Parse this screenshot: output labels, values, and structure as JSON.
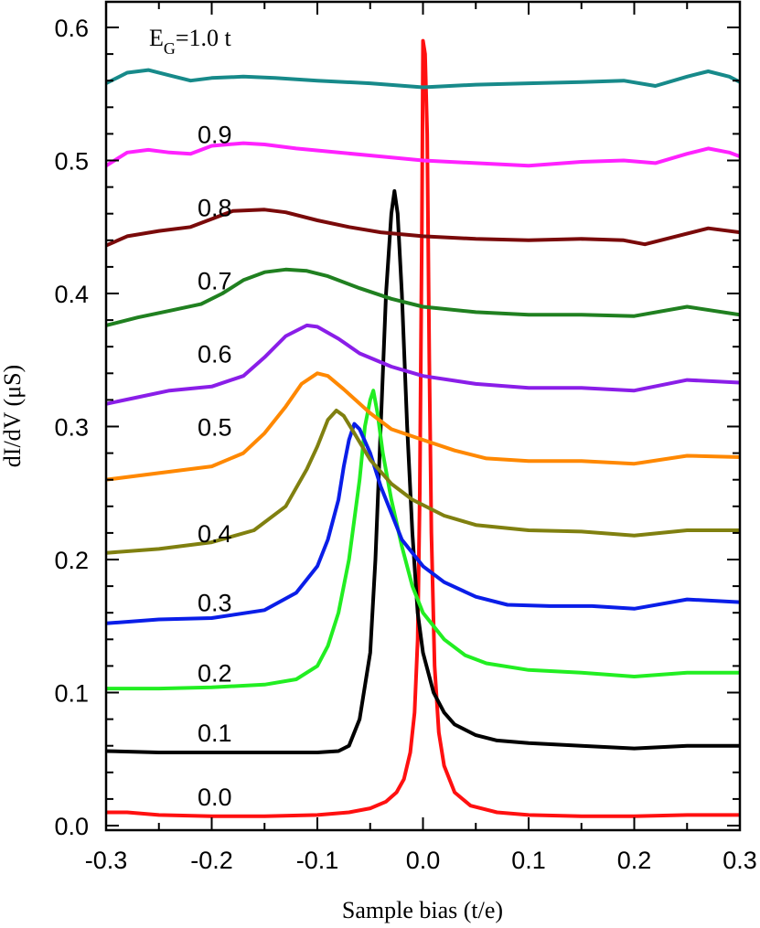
{
  "chart_data": {
    "type": "line",
    "xlabel": "Sample bias (t/e)",
    "ylabel": "dI/dV (μS)",
    "xlim": [
      -0.3,
      0.3
    ],
    "ylim": [
      0.0,
      0.62
    ],
    "x_ticks": [
      "-0.3",
      "-0.2",
      "-0.1",
      "0.0",
      "0.1",
      "0.2",
      "0.3"
    ],
    "y_ticks": [
      "0.0",
      "0.1",
      "0.2",
      "0.3",
      "0.4",
      "0.5",
      "0.6"
    ],
    "grid": false,
    "annotation": {
      "prefix": "E",
      "subscript": "G",
      "suffix": "=1.0 t"
    },
    "series": [
      {
        "name": "0.0",
        "color": "#ff1010",
        "points": [
          [
            -0.3,
            0.01
          ],
          [
            -0.28,
            0.01
          ],
          [
            -0.25,
            0.008
          ],
          [
            -0.2,
            0.007
          ],
          [
            -0.15,
            0.007
          ],
          [
            -0.1,
            0.008
          ],
          [
            -0.07,
            0.01
          ],
          [
            -0.05,
            0.013
          ],
          [
            -0.035,
            0.018
          ],
          [
            -0.025,
            0.025
          ],
          [
            -0.018,
            0.035
          ],
          [
            -0.012,
            0.055
          ],
          [
            -0.008,
            0.085
          ],
          [
            -0.005,
            0.14
          ],
          [
            -0.003,
            0.25
          ],
          [
            -0.001,
            0.45
          ],
          [
            0.0,
            0.59
          ],
          [
            0.002,
            0.58
          ],
          [
            0.004,
            0.52
          ],
          [
            0.006,
            0.35
          ],
          [
            0.008,
            0.22
          ],
          [
            0.011,
            0.12
          ],
          [
            0.015,
            0.07
          ],
          [
            0.02,
            0.045
          ],
          [
            0.03,
            0.025
          ],
          [
            0.045,
            0.015
          ],
          [
            0.07,
            0.01
          ],
          [
            0.1,
            0.008
          ],
          [
            0.15,
            0.007
          ],
          [
            0.2,
            0.007
          ],
          [
            0.25,
            0.008
          ],
          [
            0.3,
            0.008
          ]
        ]
      },
      {
        "name": "0.1",
        "color": "#000000",
        "points": [
          [
            -0.3,
            0.056
          ],
          [
            -0.25,
            0.055
          ],
          [
            -0.2,
            0.055
          ],
          [
            -0.15,
            0.055
          ],
          [
            -0.1,
            0.055
          ],
          [
            -0.08,
            0.056
          ],
          [
            -0.07,
            0.06
          ],
          [
            -0.06,
            0.08
          ],
          [
            -0.05,
            0.13
          ],
          [
            -0.045,
            0.2
          ],
          [
            -0.04,
            0.3
          ],
          [
            -0.035,
            0.4
          ],
          [
            -0.03,
            0.46
          ],
          [
            -0.027,
            0.477
          ],
          [
            -0.024,
            0.46
          ],
          [
            -0.02,
            0.4
          ],
          [
            -0.015,
            0.3
          ],
          [
            -0.01,
            0.22
          ],
          [
            -0.005,
            0.16
          ],
          [
            0.0,
            0.13
          ],
          [
            0.01,
            0.1
          ],
          [
            0.02,
            0.085
          ],
          [
            0.03,
            0.076
          ],
          [
            0.05,
            0.068
          ],
          [
            0.07,
            0.064
          ],
          [
            0.1,
            0.062
          ],
          [
            0.15,
            0.06
          ],
          [
            0.2,
            0.058
          ],
          [
            0.25,
            0.06
          ],
          [
            0.3,
            0.06
          ]
        ]
      },
      {
        "name": "0.2",
        "color": "#22ee22",
        "points": [
          [
            -0.3,
            0.103
          ],
          [
            -0.25,
            0.103
          ],
          [
            -0.2,
            0.104
          ],
          [
            -0.15,
            0.106
          ],
          [
            -0.12,
            0.11
          ],
          [
            -0.1,
            0.12
          ],
          [
            -0.09,
            0.135
          ],
          [
            -0.08,
            0.16
          ],
          [
            -0.07,
            0.2
          ],
          [
            -0.06,
            0.26
          ],
          [
            -0.055,
            0.3
          ],
          [
            -0.05,
            0.32
          ],
          [
            -0.047,
            0.327
          ],
          [
            -0.043,
            0.31
          ],
          [
            -0.038,
            0.28
          ],
          [
            -0.03,
            0.245
          ],
          [
            -0.02,
            0.21
          ],
          [
            -0.01,
            0.18
          ],
          [
            0.0,
            0.16
          ],
          [
            0.02,
            0.14
          ],
          [
            0.04,
            0.128
          ],
          [
            0.06,
            0.122
          ],
          [
            0.1,
            0.117
          ],
          [
            0.15,
            0.115
          ],
          [
            0.2,
            0.112
          ],
          [
            0.25,
            0.115
          ],
          [
            0.3,
            0.115
          ]
        ]
      },
      {
        "name": "0.3",
        "color": "#0a1ee8",
        "points": [
          [
            -0.3,
            0.152
          ],
          [
            -0.25,
            0.155
          ],
          [
            -0.2,
            0.156
          ],
          [
            -0.15,
            0.162
          ],
          [
            -0.12,
            0.175
          ],
          [
            -0.1,
            0.195
          ],
          [
            -0.09,
            0.215
          ],
          [
            -0.08,
            0.245
          ],
          [
            -0.075,
            0.27
          ],
          [
            -0.07,
            0.29
          ],
          [
            -0.065,
            0.302
          ],
          [
            -0.06,
            0.298
          ],
          [
            -0.05,
            0.28
          ],
          [
            -0.04,
            0.255
          ],
          [
            -0.03,
            0.235
          ],
          [
            -0.02,
            0.215
          ],
          [
            0.0,
            0.195
          ],
          [
            0.02,
            0.183
          ],
          [
            0.05,
            0.172
          ],
          [
            0.08,
            0.166
          ],
          [
            0.12,
            0.165
          ],
          [
            0.16,
            0.165
          ],
          [
            0.2,
            0.163
          ],
          [
            0.25,
            0.17
          ],
          [
            0.3,
            0.168
          ]
        ]
      },
      {
        "name": "0.4",
        "color": "#808010",
        "points": [
          [
            -0.3,
            0.205
          ],
          [
            -0.25,
            0.208
          ],
          [
            -0.2,
            0.213
          ],
          [
            -0.16,
            0.222
          ],
          [
            -0.13,
            0.24
          ],
          [
            -0.11,
            0.268
          ],
          [
            -0.1,
            0.285
          ],
          [
            -0.09,
            0.305
          ],
          [
            -0.082,
            0.312
          ],
          [
            -0.075,
            0.308
          ],
          [
            -0.065,
            0.295
          ],
          [
            -0.05,
            0.275
          ],
          [
            -0.03,
            0.257
          ],
          [
            -0.01,
            0.245
          ],
          [
            0.02,
            0.233
          ],
          [
            0.05,
            0.226
          ],
          [
            0.1,
            0.222
          ],
          [
            0.15,
            0.221
          ],
          [
            0.2,
            0.218
          ],
          [
            0.25,
            0.222
          ],
          [
            0.3,
            0.222
          ]
        ]
      },
      {
        "name": "0.5",
        "color": "#ff8800",
        "points": [
          [
            -0.3,
            0.26
          ],
          [
            -0.25,
            0.265
          ],
          [
            -0.2,
            0.27
          ],
          [
            -0.17,
            0.28
          ],
          [
            -0.15,
            0.295
          ],
          [
            -0.13,
            0.315
          ],
          [
            -0.115,
            0.332
          ],
          [
            -0.1,
            0.34
          ],
          [
            -0.09,
            0.338
          ],
          [
            -0.075,
            0.328
          ],
          [
            -0.05,
            0.31
          ],
          [
            -0.03,
            0.298
          ],
          [
            0.0,
            0.29
          ],
          [
            0.03,
            0.282
          ],
          [
            0.06,
            0.276
          ],
          [
            0.1,
            0.274
          ],
          [
            0.15,
            0.274
          ],
          [
            0.2,
            0.272
          ],
          [
            0.25,
            0.278
          ],
          [
            0.3,
            0.277
          ]
        ]
      },
      {
        "name": "0.6",
        "color": "#8a1ee8",
        "points": [
          [
            -0.3,
            0.317
          ],
          [
            -0.27,
            0.322
          ],
          [
            -0.24,
            0.327
          ],
          [
            -0.2,
            0.33
          ],
          [
            -0.17,
            0.338
          ],
          [
            -0.15,
            0.352
          ],
          [
            -0.13,
            0.368
          ],
          [
            -0.11,
            0.376
          ],
          [
            -0.1,
            0.375
          ],
          [
            -0.08,
            0.366
          ],
          [
            -0.06,
            0.355
          ],
          [
            -0.03,
            0.345
          ],
          [
            0.0,
            0.338
          ],
          [
            0.05,
            0.332
          ],
          [
            0.1,
            0.329
          ],
          [
            0.15,
            0.329
          ],
          [
            0.2,
            0.327
          ],
          [
            0.25,
            0.335
          ],
          [
            0.3,
            0.333
          ]
        ]
      },
      {
        "name": "0.7",
        "color": "#208020",
        "points": [
          [
            -0.3,
            0.376
          ],
          [
            -0.27,
            0.382
          ],
          [
            -0.24,
            0.387
          ],
          [
            -0.21,
            0.392
          ],
          [
            -0.19,
            0.4
          ],
          [
            -0.17,
            0.41
          ],
          [
            -0.15,
            0.416
          ],
          [
            -0.13,
            0.418
          ],
          [
            -0.11,
            0.417
          ],
          [
            -0.09,
            0.413
          ],
          [
            -0.06,
            0.404
          ],
          [
            -0.03,
            0.396
          ],
          [
            0.0,
            0.39
          ],
          [
            0.05,
            0.386
          ],
          [
            0.1,
            0.384
          ],
          [
            0.15,
            0.384
          ],
          [
            0.2,
            0.383
          ],
          [
            0.25,
            0.39
          ],
          [
            0.3,
            0.384
          ]
        ]
      },
      {
        "name": "0.8",
        "color": "#7a0a0a",
        "points": [
          [
            -0.3,
            0.436
          ],
          [
            -0.28,
            0.443
          ],
          [
            -0.25,
            0.447
          ],
          [
            -0.22,
            0.45
          ],
          [
            -0.2,
            0.456
          ],
          [
            -0.18,
            0.462
          ],
          [
            -0.15,
            0.463
          ],
          [
            -0.13,
            0.461
          ],
          [
            -0.1,
            0.455
          ],
          [
            -0.07,
            0.45
          ],
          [
            -0.04,
            0.446
          ],
          [
            0.0,
            0.443
          ],
          [
            0.05,
            0.441
          ],
          [
            0.1,
            0.44
          ],
          [
            0.15,
            0.441
          ],
          [
            0.19,
            0.44
          ],
          [
            0.21,
            0.437
          ],
          [
            0.24,
            0.443
          ],
          [
            0.27,
            0.449
          ],
          [
            0.3,
            0.446
          ]
        ]
      },
      {
        "name": "0.9",
        "color": "#ff22ff",
        "points": [
          [
            -0.3,
            0.496
          ],
          [
            -0.28,
            0.506
          ],
          [
            -0.26,
            0.508
          ],
          [
            -0.24,
            0.506
          ],
          [
            -0.22,
            0.505
          ],
          [
            -0.2,
            0.511
          ],
          [
            -0.17,
            0.513
          ],
          [
            -0.15,
            0.512
          ],
          [
            -0.12,
            0.509
          ],
          [
            -0.08,
            0.506
          ],
          [
            -0.04,
            0.503
          ],
          [
            0.0,
            0.5
          ],
          [
            0.05,
            0.498
          ],
          [
            0.1,
            0.496
          ],
          [
            0.15,
            0.499
          ],
          [
            0.19,
            0.5
          ],
          [
            0.22,
            0.498
          ],
          [
            0.25,
            0.505
          ],
          [
            0.27,
            0.509
          ],
          [
            0.29,
            0.506
          ],
          [
            0.3,
            0.503
          ]
        ]
      },
      {
        "name": "",
        "color": "#178a8a",
        "points": [
          [
            -0.3,
            0.558
          ],
          [
            -0.28,
            0.566
          ],
          [
            -0.26,
            0.568
          ],
          [
            -0.24,
            0.564
          ],
          [
            -0.22,
            0.56
          ],
          [
            -0.2,
            0.562
          ],
          [
            -0.17,
            0.563
          ],
          [
            -0.14,
            0.562
          ],
          [
            -0.1,
            0.56
          ],
          [
            -0.05,
            0.558
          ],
          [
            0.0,
            0.555
          ],
          [
            0.05,
            0.557
          ],
          [
            0.1,
            0.558
          ],
          [
            0.15,
            0.559
          ],
          [
            0.19,
            0.56
          ],
          [
            0.22,
            0.556
          ],
          [
            0.25,
            0.563
          ],
          [
            0.27,
            0.567
          ],
          [
            0.29,
            0.563
          ],
          [
            0.3,
            0.559
          ]
        ]
      }
    ]
  }
}
